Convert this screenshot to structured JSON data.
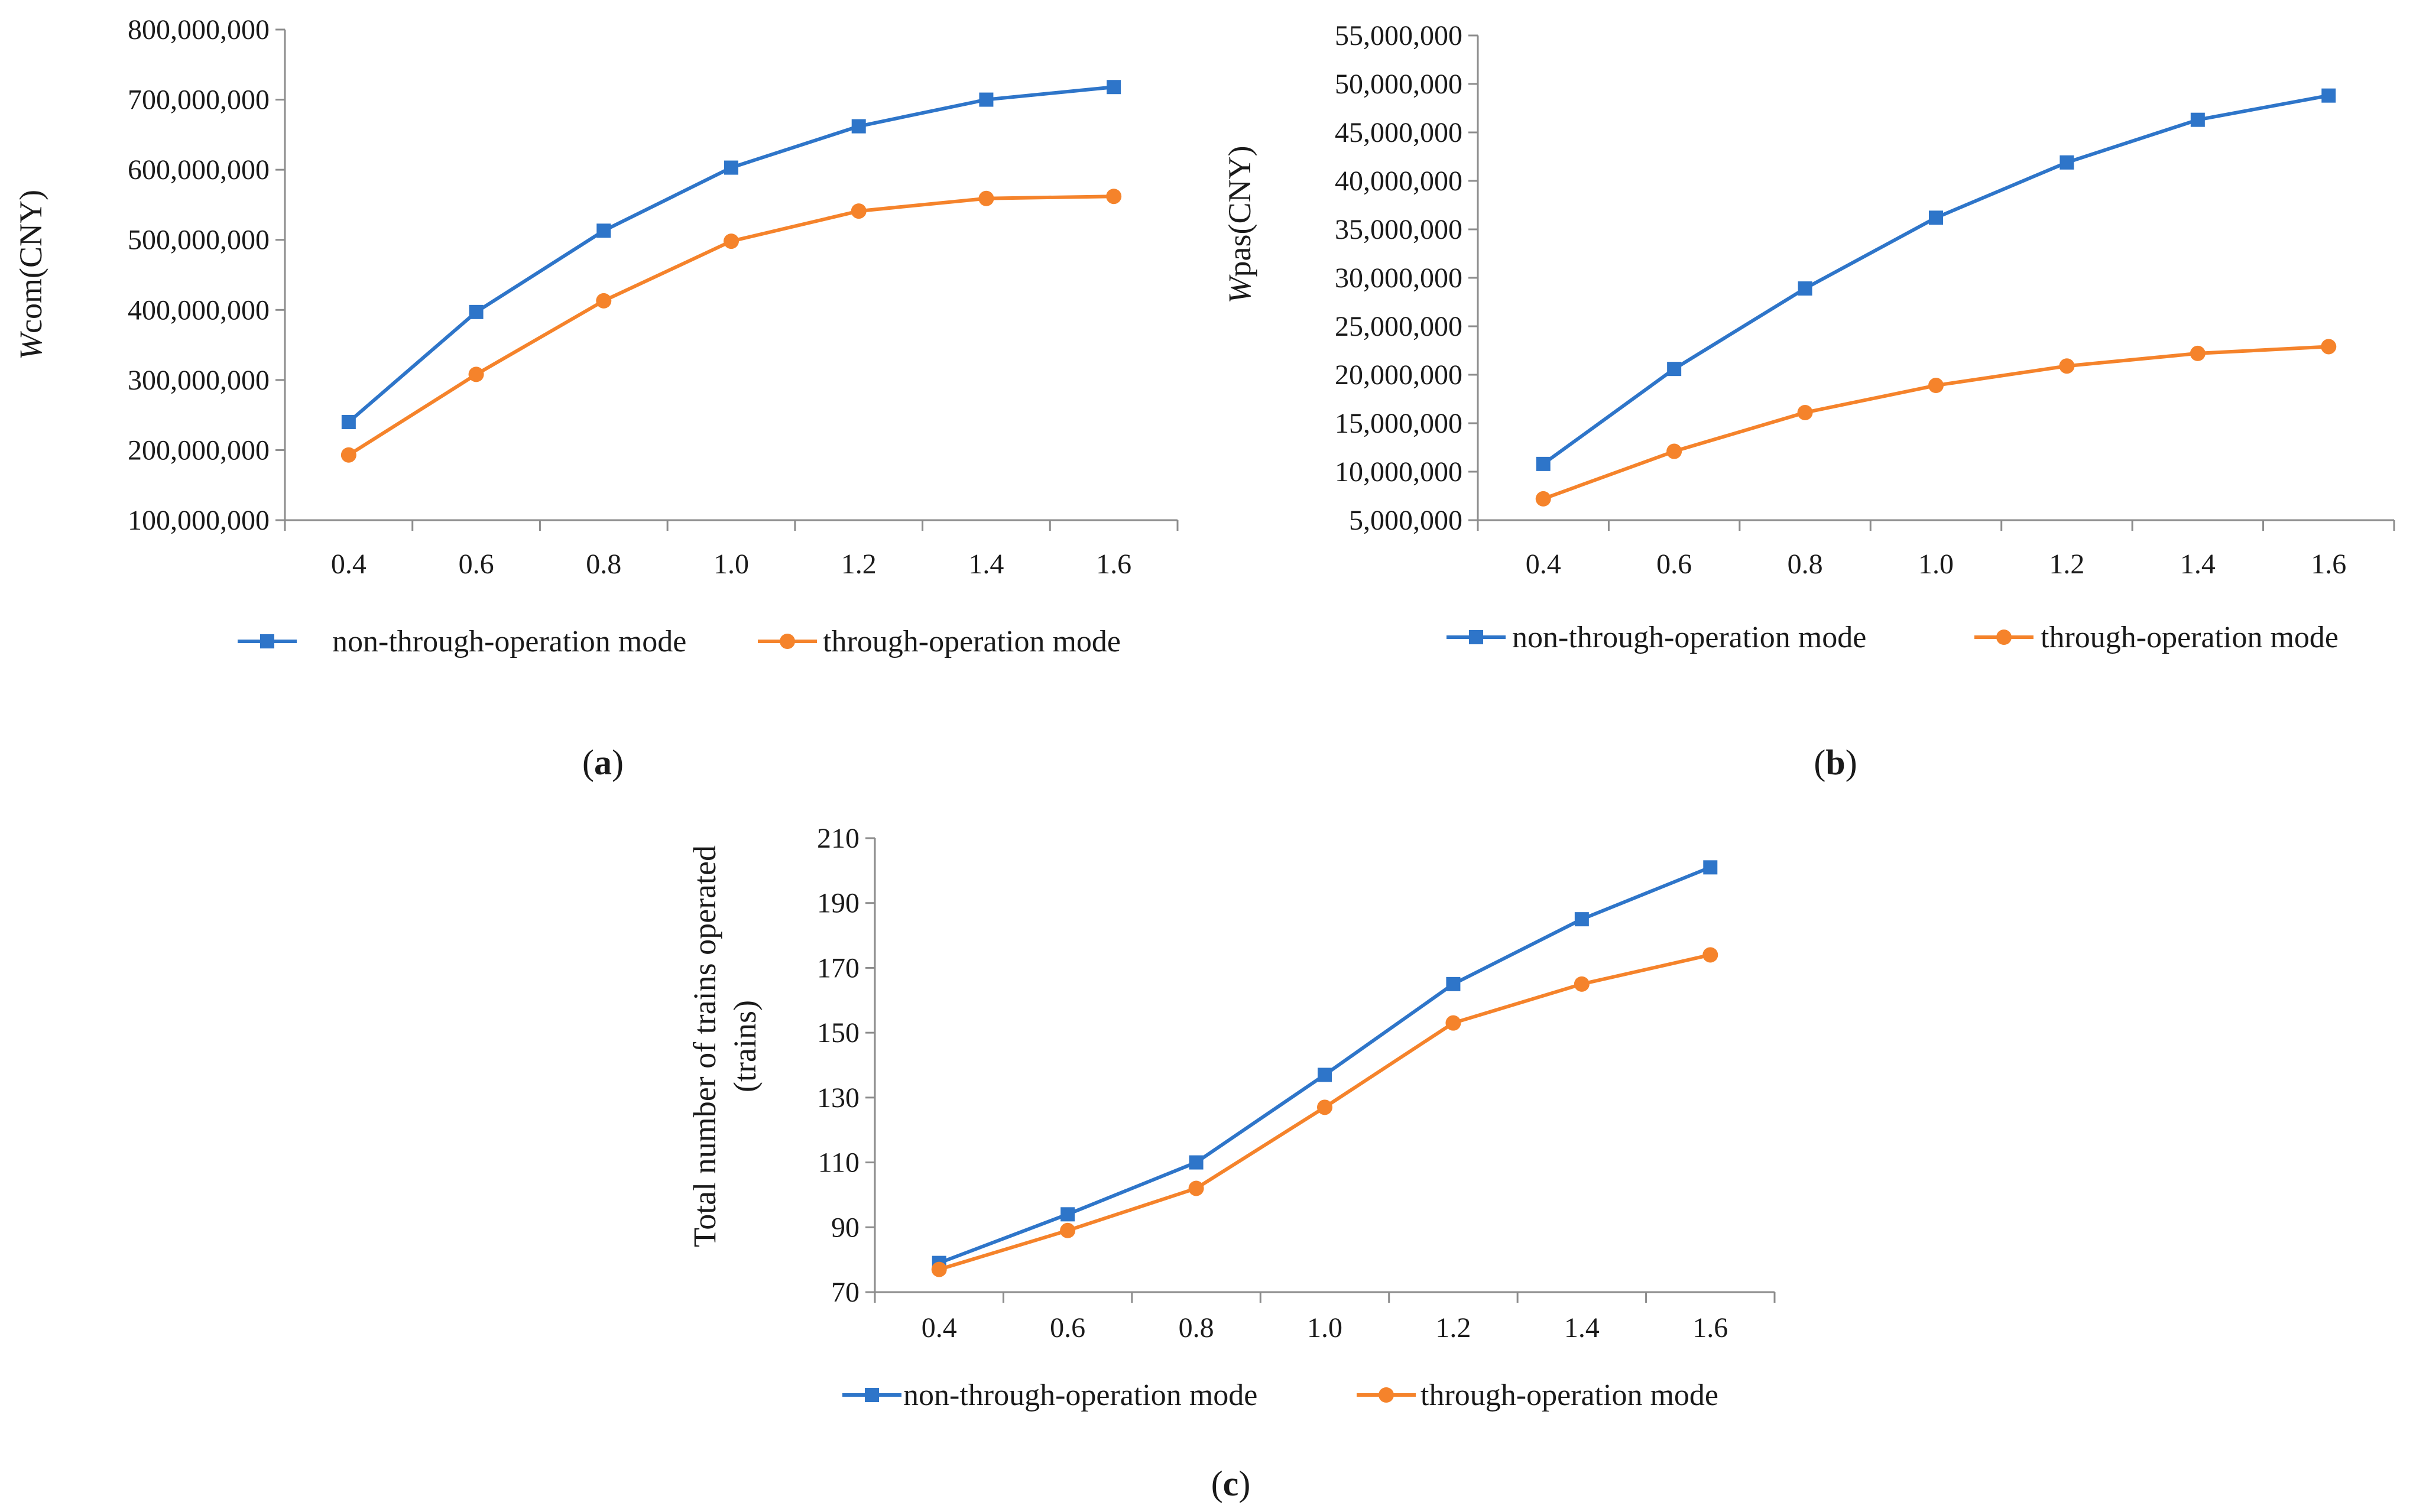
{
  "colors": {
    "non_through": "#2E75C9",
    "through": "#F5832B",
    "axis": "#8c8c8c"
  },
  "chart_data": [
    {
      "id": "a",
      "type": "line",
      "caption": "a",
      "ylabel_italic": "W",
      "ylabel_rest": "com(CNY)",
      "x": [
        0.4,
        0.6,
        0.8,
        1.0,
        1.2,
        1.4,
        1.6
      ],
      "x_tick_labels": [
        "0.4",
        "0.6",
        "0.8",
        "1.0",
        "1.2",
        "1.4",
        "1.6"
      ],
      "ylim": [
        100000000,
        800000000
      ],
      "y_ticks": [
        100000000,
        200000000,
        300000000,
        400000000,
        500000000,
        600000000,
        700000000,
        800000000
      ],
      "y_tick_labels": [
        "100,000,000",
        "200,000,000",
        "300,000,000",
        "400,000,000",
        "500,000,000",
        "600,000,000",
        "700,000,000",
        "800,000,000"
      ],
      "series": [
        {
          "name": "non-through-operation mode",
          "marker": "square",
          "values": [
            240000000,
            397000000,
            513000000,
            603000000,
            662000000,
            700000000,
            718000000
          ]
        },
        {
          "name": "through-operation mode",
          "marker": "circle",
          "values": [
            193000000,
            308000000,
            413000000,
            498000000,
            541000000,
            559000000,
            562000000
          ]
        }
      ]
    },
    {
      "id": "b",
      "type": "line",
      "caption": "b",
      "ylabel_italic": "W",
      "ylabel_rest": "pas(CNY)",
      "x": [
        0.4,
        0.6,
        0.8,
        1.0,
        1.2,
        1.4,
        1.6
      ],
      "x_tick_labels": [
        "0.4",
        "0.6",
        "0.8",
        "1.0",
        "1.2",
        "1.4",
        "1.6"
      ],
      "ylim": [
        5000000,
        55000000
      ],
      "y_ticks": [
        5000000,
        10000000,
        15000000,
        20000000,
        25000000,
        30000000,
        35000000,
        40000000,
        45000000,
        50000000,
        55000000
      ],
      "y_tick_labels": [
        "5,000,000",
        "10,000,000",
        "15,000,000",
        "20,000,000",
        "25,000,000",
        "30,000,000",
        "35,000,000",
        "40,000,000",
        "45,000,000",
        "50,000,000",
        "55,000,000"
      ],
      "series": [
        {
          "name": "non-through-operation mode",
          "marker": "square",
          "values": [
            10800000,
            20600000,
            28900000,
            36200000,
            41900000,
            46300000,
            48800000
          ]
        },
        {
          "name": "through-operation mode",
          "marker": "circle",
          "values": [
            7200000,
            12100000,
            16100000,
            18900000,
            20900000,
            22200000,
            22900000
          ]
        }
      ]
    },
    {
      "id": "c",
      "type": "line",
      "caption": "c",
      "ylabel_line1": "Total number of trains operated",
      "ylabel_line2": "(trains)",
      "x": [
        0.4,
        0.6,
        0.8,
        1.0,
        1.2,
        1.4,
        1.6
      ],
      "x_tick_labels": [
        "0.4",
        "0.6",
        "0.8",
        "1.0",
        "1.2",
        "1.4",
        "1.6"
      ],
      "ylim": [
        70,
        210
      ],
      "y_ticks": [
        70,
        90,
        110,
        130,
        150,
        170,
        190,
        210
      ],
      "y_tick_labels": [
        "70",
        "90",
        "110",
        "130",
        "150",
        "170",
        "190",
        "210"
      ],
      "series": [
        {
          "name": "non-through-operation mode",
          "marker": "square",
          "values": [
            79,
            94,
            110,
            137,
            165,
            185,
            201
          ]
        },
        {
          "name": "through-operation mode",
          "marker": "circle",
          "values": [
            77,
            89,
            102,
            127,
            153,
            165,
            174
          ]
        }
      ]
    }
  ]
}
